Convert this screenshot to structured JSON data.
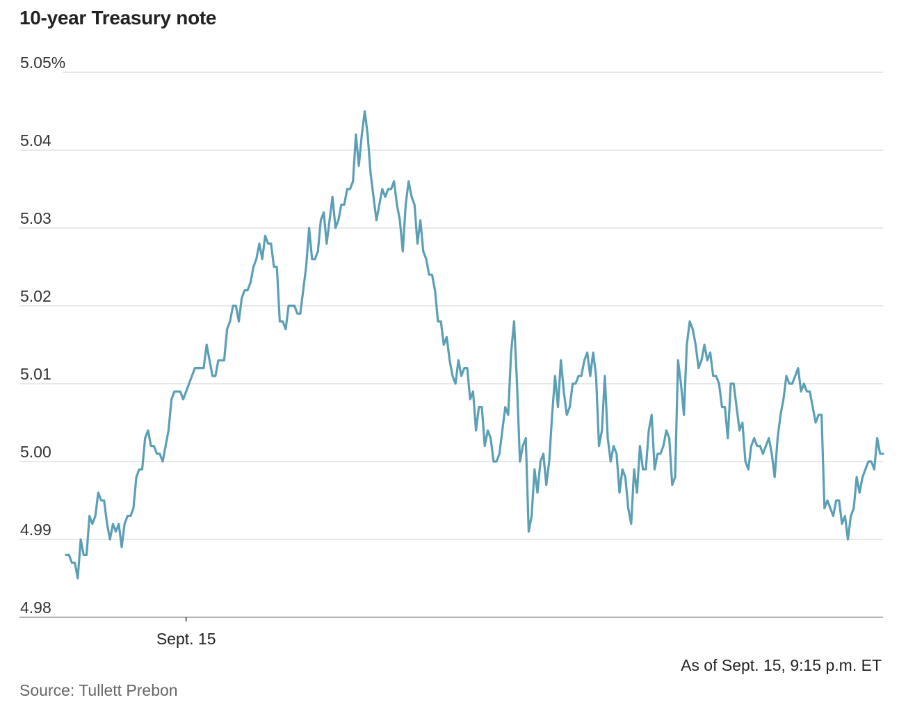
{
  "chart_data": {
    "type": "line",
    "title": "10-year Treasury note",
    "xlabel": "",
    "ylabel": "",
    "ylim": [
      4.98,
      5.05
    ],
    "yticks": [
      {
        "value": 5.05,
        "label": "5.05%"
      },
      {
        "value": 5.04,
        "label": "5.04"
      },
      {
        "value": 5.03,
        "label": "5.03"
      },
      {
        "value": 5.02,
        "label": "5.02"
      },
      {
        "value": 5.01,
        "label": "5.01"
      },
      {
        "value": 5.0,
        "label": "5.00"
      },
      {
        "value": 4.99,
        "label": "4.99"
      },
      {
        "value": 4.98,
        "label": "4.98"
      }
    ],
    "xticks": [
      {
        "index": 41,
        "label": "Sept. 15"
      }
    ],
    "grid": true,
    "line_color": "#5b9fb5",
    "series": [
      {
        "values": [
          4.988,
          4.988,
          4.987,
          4.987,
          4.985,
          4.99,
          4.988,
          4.988,
          4.993,
          4.992,
          4.993,
          4.996,
          4.995,
          4.995,
          4.992,
          4.99,
          4.992,
          4.991,
          4.992,
          4.989,
          4.992,
          4.993,
          4.993,
          4.994,
          4.998,
          4.999,
          4.999,
          5.003,
          5.004,
          5.002,
          5.002,
          5.001,
          5.001,
          5.0,
          5.002,
          5.004,
          5.008,
          5.009,
          5.009,
          5.009,
          5.008,
          5.009,
          5.01,
          5.011,
          5.012,
          5.012,
          5.012,
          5.012,
          5.015,
          5.013,
          5.011,
          5.011,
          5.013,
          5.013,
          5.013,
          5.017,
          5.018,
          5.02,
          5.02,
          5.018,
          5.021,
          5.022,
          5.022,
          5.023,
          5.025,
          5.026,
          5.028,
          5.026,
          5.029,
          5.028,
          5.028,
          5.025,
          5.025,
          5.018,
          5.018,
          5.017,
          5.02,
          5.02,
          5.02,
          5.019,
          5.019,
          5.022,
          5.025,
          5.03,
          5.026,
          5.026,
          5.027,
          5.031,
          5.032,
          5.028,
          5.031,
          5.034,
          5.03,
          5.031,
          5.033,
          5.033,
          5.035,
          5.035,
          5.036,
          5.042,
          5.038,
          5.042,
          5.045,
          5.042,
          5.037,
          5.034,
          5.031,
          5.033,
          5.035,
          5.034,
          5.035,
          5.035,
          5.036,
          5.033,
          5.031,
          5.027,
          5.033,
          5.036,
          5.034,
          5.033,
          5.028,
          5.031,
          5.027,
          5.026,
          5.024,
          5.024,
          5.022,
          5.018,
          5.018,
          5.015,
          5.016,
          5.013,
          5.011,
          5.01,
          5.013,
          5.011,
          5.012,
          5.012,
          5.008,
          5.009,
          5.004,
          5.007,
          5.007,
          5.002,
          5.004,
          5.003,
          5.0,
          5.0,
          5.001,
          5.004,
          5.007,
          5.006,
          5.014,
          5.018,
          5.01,
          5.0,
          5.002,
          5.003,
          4.991,
          4.993,
          4.999,
          4.996,
          5.0,
          5.001,
          4.997,
          5.0,
          5.006,
          5.011,
          5.007,
          5.013,
          5.009,
          5.006,
          5.007,
          5.01,
          5.01,
          5.011,
          5.011,
          5.013,
          5.014,
          5.011,
          5.014,
          5.011,
          5.002,
          5.004,
          5.011,
          5.003,
          5.0,
          5.002,
          5.001,
          4.996,
          4.999,
          4.998,
          4.994,
          4.992,
          4.999,
          4.996,
          5.002,
          4.999,
          4.999,
          5.004,
          5.006,
          4.999,
          5.001,
          5.001,
          5.002,
          5.004,
          5.003,
          4.997,
          4.998,
          5.013,
          5.01,
          5.006,
          5.015,
          5.018,
          5.017,
          5.015,
          5.012,
          5.013,
          5.015,
          5.013,
          5.014,
          5.011,
          5.011,
          5.01,
          5.007,
          5.007,
          5.003,
          5.01,
          5.01,
          5.007,
          5.004,
          5.005,
          5.0,
          4.999,
          5.002,
          5.003,
          5.002,
          5.002,
          5.001,
          5.002,
          5.003,
          5.001,
          4.998,
          5.003,
          5.006,
          5.008,
          5.011,
          5.01,
          5.01,
          5.011,
          5.012,
          5.009,
          5.01,
          5.009,
          5.009,
          5.007,
          5.005,
          5.006,
          5.006,
          4.994,
          4.995,
          4.994,
          4.993,
          4.995,
          4.995,
          4.992,
          4.993,
          4.99,
          4.993,
          4.994,
          4.998,
          4.996,
          4.998,
          4.999,
          5.0,
          5.0,
          4.999,
          5.003,
          5.001,
          5.001
        ]
      }
    ]
  },
  "notes": {
    "as_of": "As of Sept. 15, 9:15 p.m. ET",
    "source": "Source: Tullett Prebon"
  }
}
